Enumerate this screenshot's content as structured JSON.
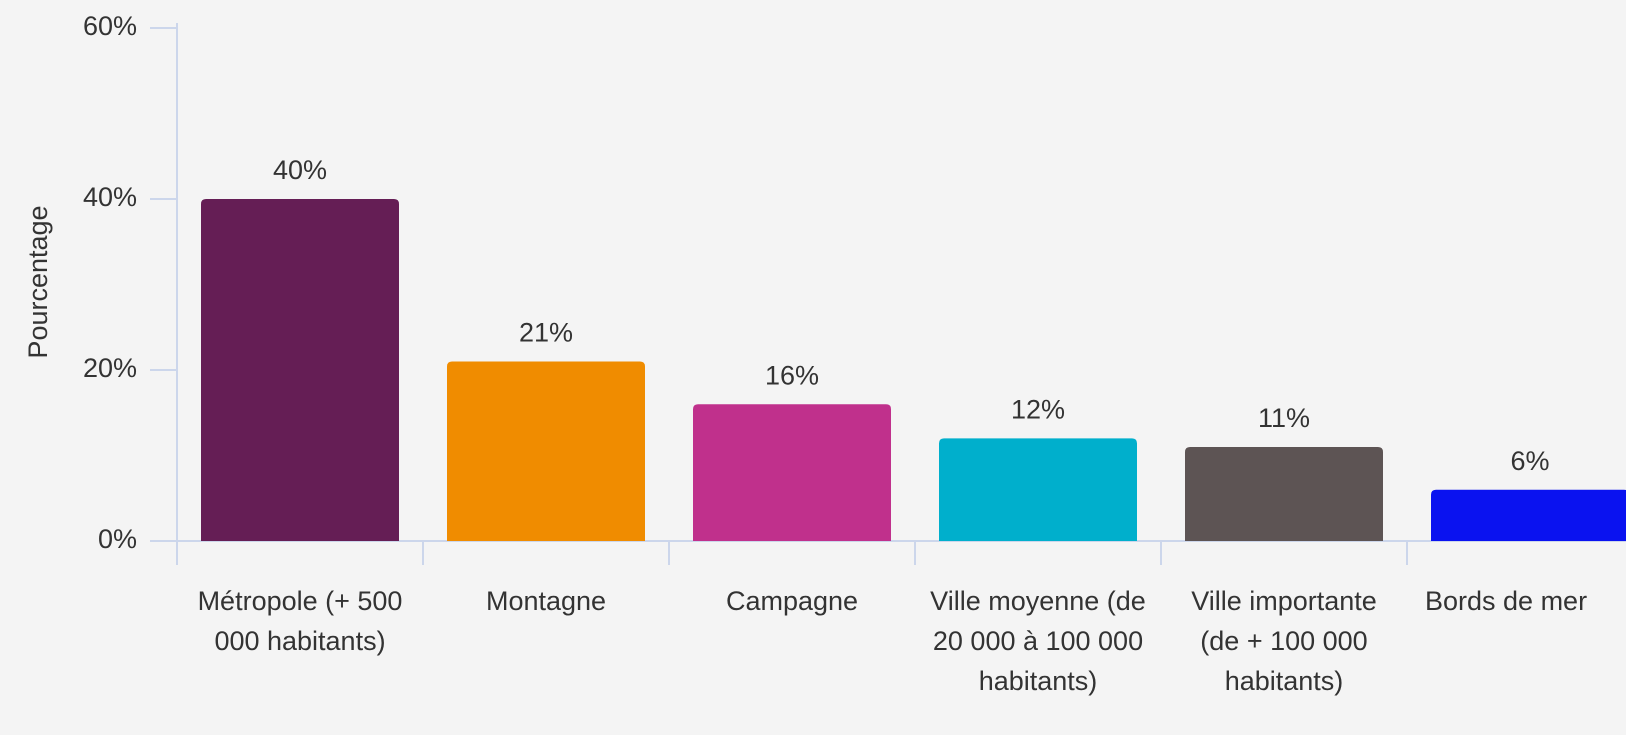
{
  "chart_data": {
    "type": "bar",
    "y_label": "Pourcentage",
    "categories": [
      "Métropole (+ 500 000 habitants)",
      "Montagne",
      "Campagne",
      "Ville moyenne (de 20 000 à 100 000 habitants)",
      "Ville importante (de + 100 000 habitants)",
      "Bords de mer"
    ],
    "values": [
      40,
      21,
      16,
      12,
      11,
      6
    ],
    "value_labels": [
      "40%",
      "21%",
      "16%",
      "12%",
      "11%",
      "6%"
    ],
    "colors": [
      "#651e55",
      "#f08c00",
      "#c0308c",
      "#00afcc",
      "#5d5454",
      "#0a12f0"
    ],
    "ylim": [
      0,
      60
    ],
    "yticks": [
      {
        "value": 0,
        "label": "0%"
      },
      {
        "value": 20,
        "label": "20%"
      },
      {
        "value": 40,
        "label": "40%"
      },
      {
        "value": 60,
        "label": "60%"
      }
    ]
  }
}
